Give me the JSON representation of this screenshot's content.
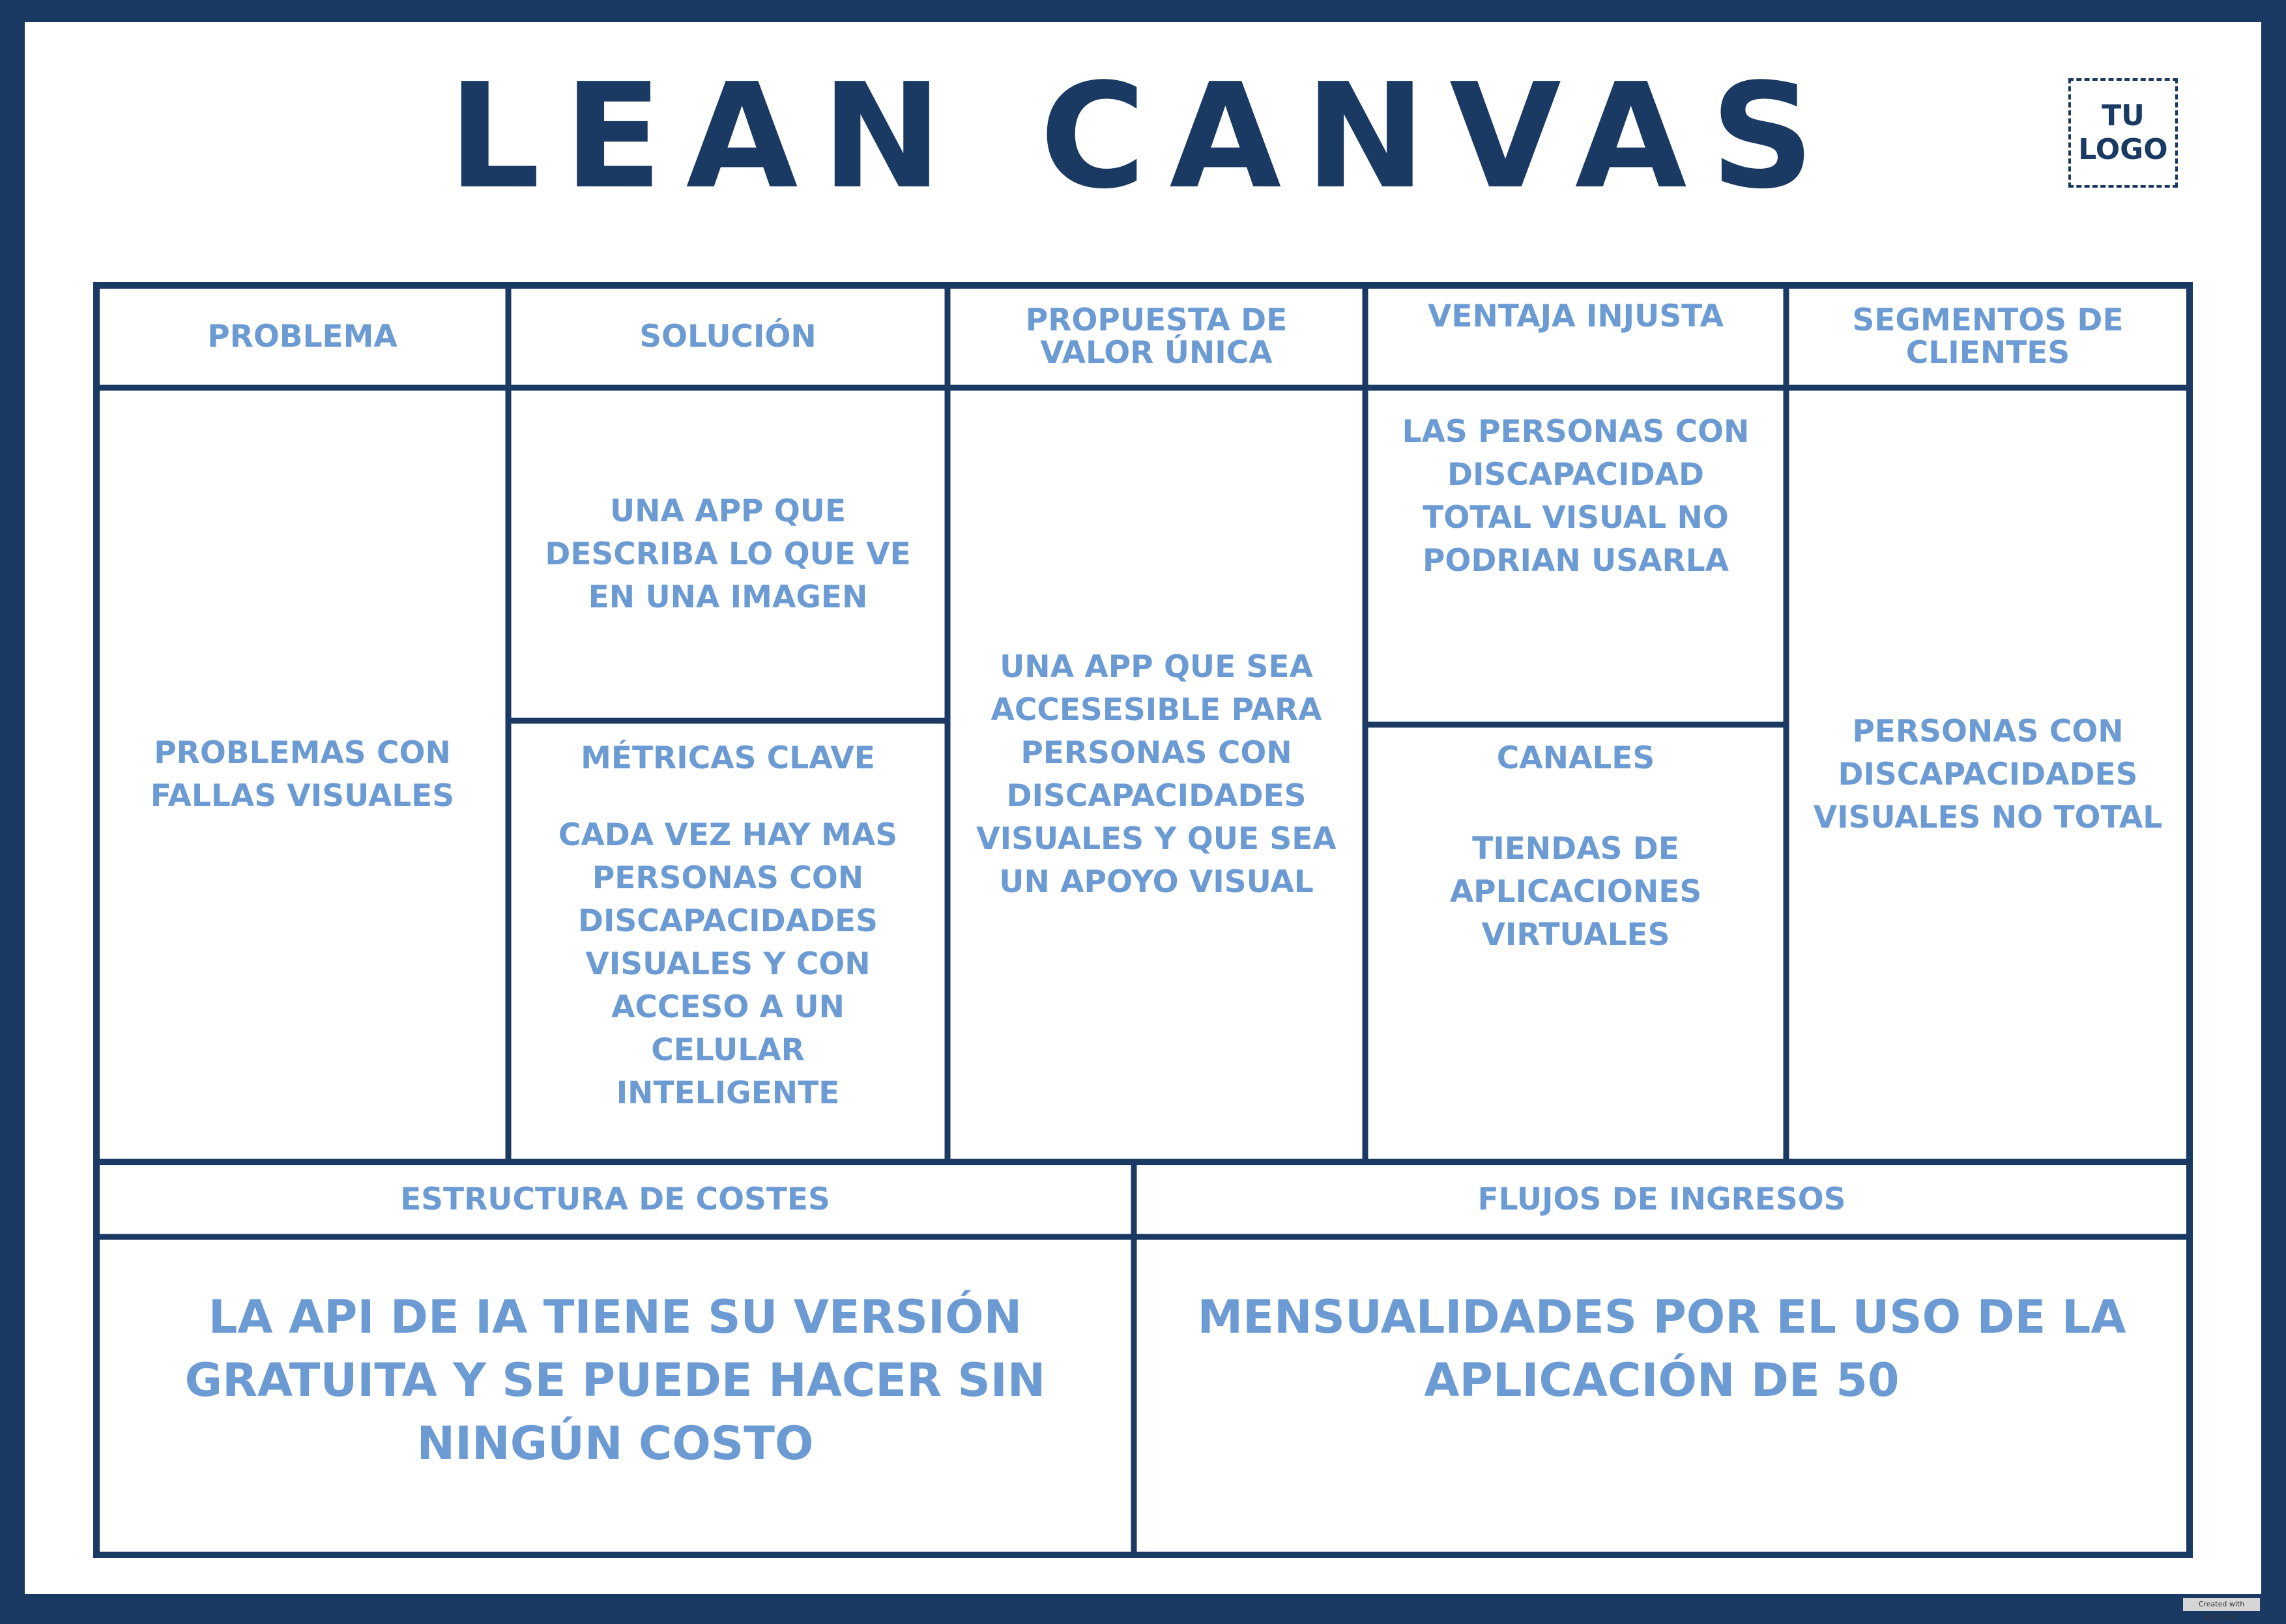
{
  "title": "LEAN CANVAS",
  "logo": {
    "line1": "TU",
    "line2": "LOGO"
  },
  "colors": {
    "border": "#1b3a63",
    "text": "#6b9bd2",
    "title": "#1b3a63",
    "background": "#ffffff"
  },
  "sections": {
    "problema": {
      "header": "PROBLEMA",
      "body": "PROBLEMAS CON FALLAS VISUALES"
    },
    "solucion": {
      "header": "SOLUCIÓN",
      "body": "UNA APP QUE DESCRIBA LO QUE VE EN UNA IMAGEN"
    },
    "metricas": {
      "header": "MÉTRICAS CLAVE",
      "body": "CADA VEZ HAY MAS PERSONAS CON DISCAPACIDADES VISUALES Y CON ACCESO A UN CELULAR INTELIGENTE"
    },
    "propuesta": {
      "header": "PROPUESTA DE VALOR ÚNICA",
      "body": "UNA APP QUE SEA ACCESESIBLE PARA PERSONAS CON DISCAPACIDADES VISUALES Y QUE SEA UN APOYO VISUAL"
    },
    "ventaja": {
      "header": "VENTAJA INJUSTA",
      "body": "LAS PERSONAS CON DISCAPACIDAD TOTAL VISUAL NO PODRIAN USARLA"
    },
    "canales": {
      "header": "CANALES",
      "body": "TIENDAS DE APLICACIONES VIRTUALES"
    },
    "segmentos": {
      "header": "SEGMENTOS DE CLIENTES",
      "body": "PERSONAS CON DISCAPACIDADES VISUALES NO TOTAL"
    },
    "costes": {
      "header": "ESTRUCTURA DE COSTES",
      "body": "LA API DE IA TIENE SU VERSIÓN GRATUITA Y SE PUEDE HACER SIN NINGÚN COSTO"
    },
    "ingresos": {
      "header": "FLUJOS DE INGRESOS",
      "body": "MENSUALIDADES POR EL USO DE LA APLICACIÓN DE 50"
    }
  },
  "watermark": "Created with EDIT.org"
}
